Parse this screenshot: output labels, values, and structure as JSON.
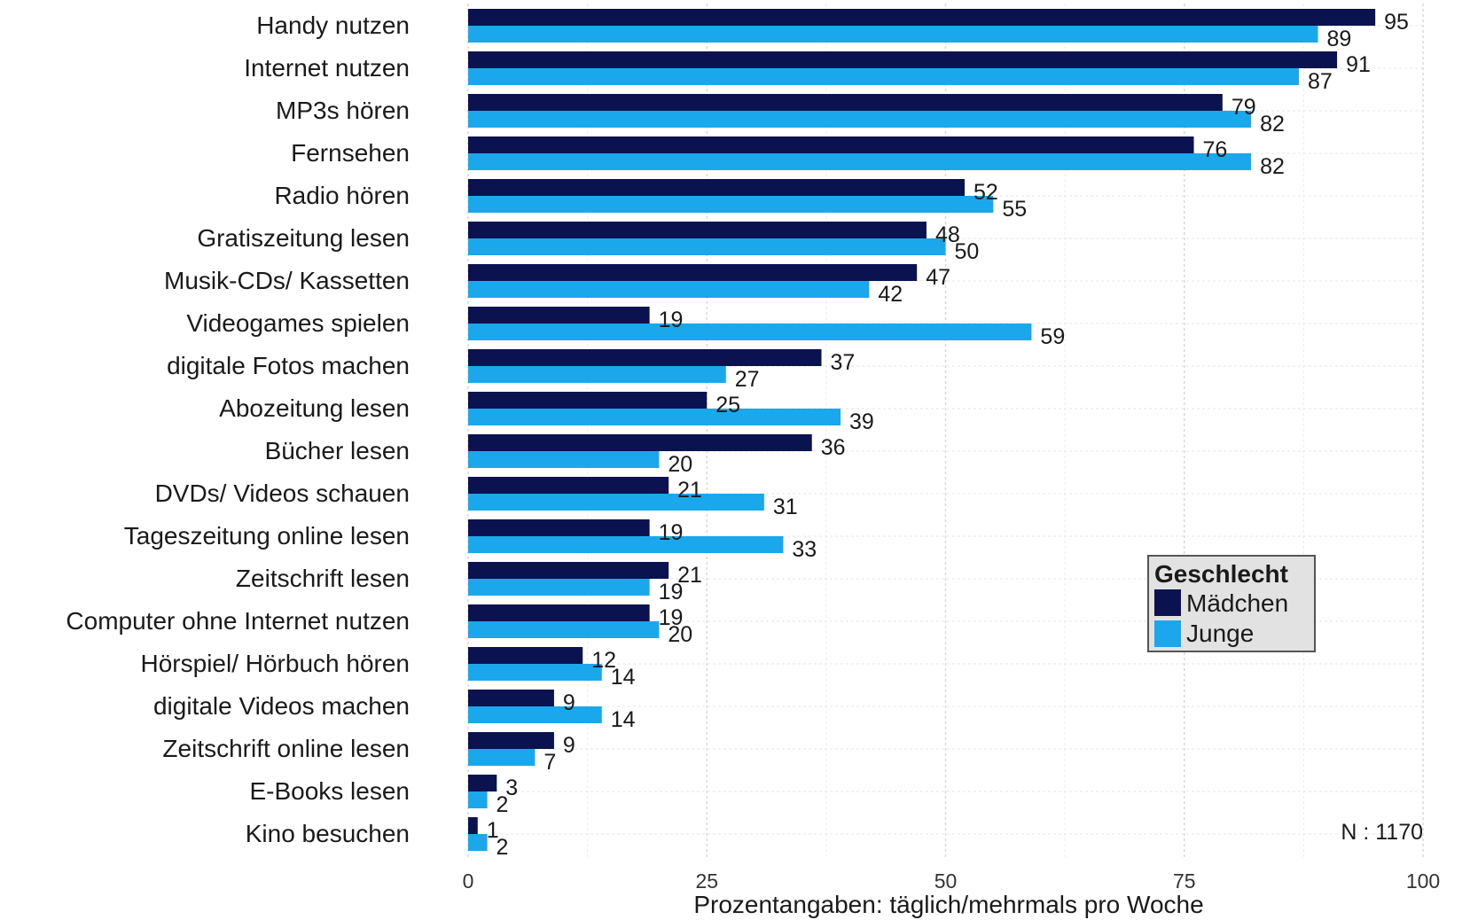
{
  "chart_data": {
    "type": "bar",
    "orientation": "horizontal",
    "categories": [
      "Handy nutzen",
      "Internet nutzen",
      "MP3s hören",
      "Fernsehen",
      "Radio hören",
      "Gratiszeitung lesen",
      "Musik-CDs/ Kassetten",
      "Videogames spielen",
      "digitale Fotos machen",
      "Abozeitung lesen",
      "Bücher lesen",
      "DVDs/ Videos schauen",
      "Tageszeitung online lesen",
      "Zeitschrift lesen",
      "Computer ohne Internet nutzen",
      "Hörspiel/ Hörbuch hören",
      "digitale Videos machen",
      "Zeitschrift online lesen",
      "E-Books lesen",
      "Kino besuchen"
    ],
    "series": [
      {
        "name": "Mädchen",
        "color": "#0a1250",
        "values": [
          95,
          91,
          79,
          76,
          52,
          48,
          47,
          19,
          37,
          25,
          36,
          21,
          19,
          21,
          19,
          12,
          9,
          9,
          3,
          1
        ]
      },
      {
        "name": "Junge",
        "color": "#1aa7ec",
        "values": [
          89,
          87,
          82,
          82,
          55,
          50,
          42,
          59,
          27,
          39,
          20,
          31,
          33,
          19,
          20,
          14,
          14,
          7,
          2,
          2
        ]
      }
    ],
    "xlim": [
      0,
      100
    ],
    "xticks": [
      "0",
      "25",
      "50",
      "75",
      "100"
    ],
    "xlabel": "Prozentangaben: täglich/mehrmals pro Woche",
    "legend": {
      "title": "Geschlecht",
      "placement": "right"
    },
    "note": "N : 1170",
    "grid": true
  }
}
